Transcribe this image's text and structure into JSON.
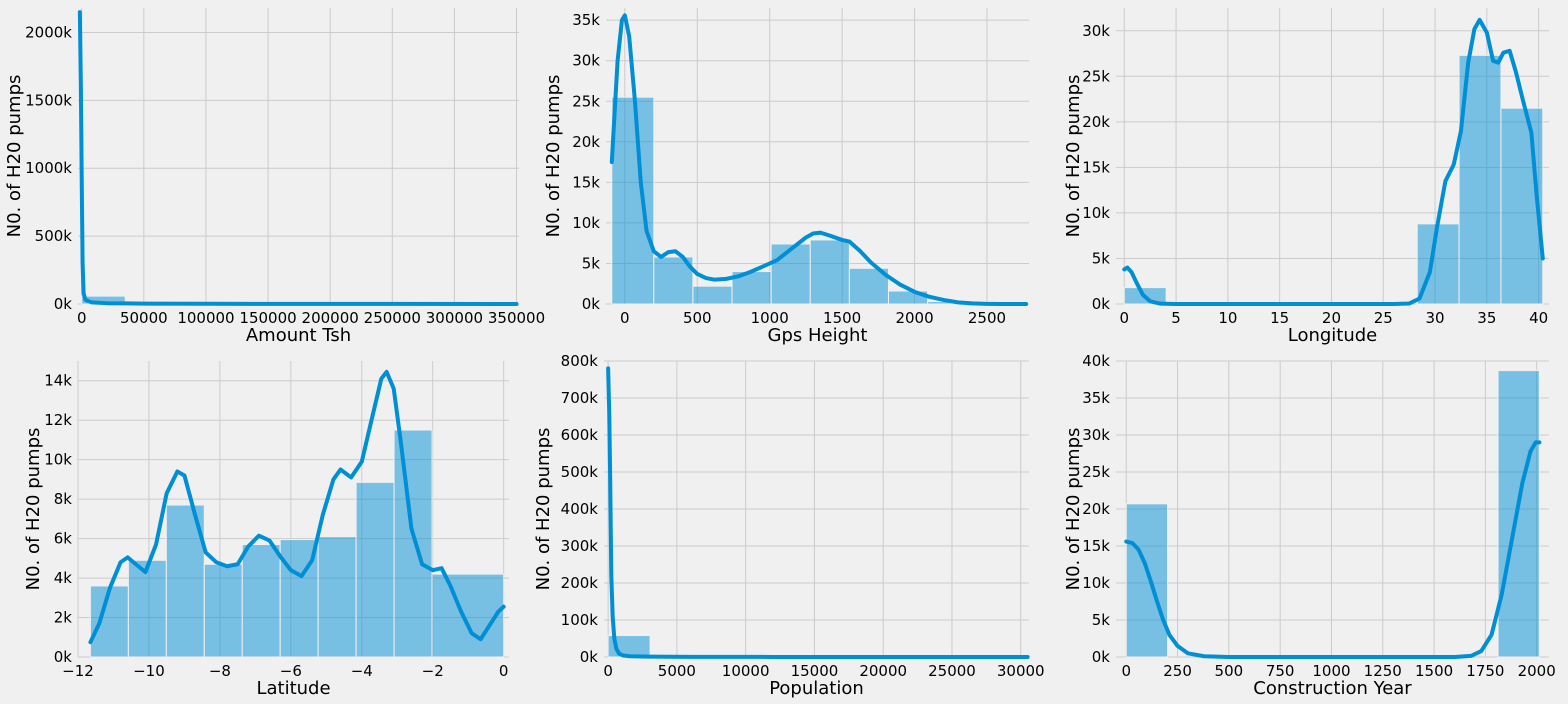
{
  "style": {
    "background": "#f0f0f0",
    "grid_color": "#cbcbcb",
    "bar_color": "#008fd5",
    "bar_opacity": 0.5,
    "kde_color": "#008fd5"
  },
  "chart_data": [
    {
      "type": "bar",
      "subtype": "histogram-with-kde",
      "xlabel": "Amount Tsh",
      "ylabel": "N0. of H20 pumps",
      "xlim": [
        -3000,
        352000
      ],
      "ylim": [
        0,
        2180000
      ],
      "x_ticks": [
        0,
        50000,
        100000,
        150000,
        200000,
        250000,
        300000,
        350000
      ],
      "x_tick_labels": [
        "0",
        "50000",
        "100000",
        "150000",
        "200000",
        "250000",
        "300000",
        "350000"
      ],
      "y_ticks": [
        0,
        500000,
        1000000,
        1500000,
        2000000
      ],
      "y_tick_labels": [
        "0k",
        "500k",
        "1000k",
        "1500k",
        "2000k"
      ],
      "grid": true,
      "bins": [
        {
          "x0": 0,
          "x1": 35000,
          "value": 58000
        },
        {
          "x0": 35000,
          "x1": 70000,
          "value": 40
        },
        {
          "x0": 70000,
          "x1": 105000,
          "value": 15
        },
        {
          "x0": 105000,
          "x1": 140000,
          "value": 8
        },
        {
          "x0": 140000,
          "x1": 175000,
          "value": 5
        },
        {
          "x0": 175000,
          "x1": 210000,
          "value": 4
        },
        {
          "x0": 210000,
          "x1": 245000,
          "value": 2
        },
        {
          "x0": 245000,
          "x1": 280000,
          "value": 2
        },
        {
          "x0": 280000,
          "x1": 315000,
          "value": 1
        },
        {
          "x0": 315000,
          "x1": 350000,
          "value": 1
        }
      ],
      "kde": [
        [
          -1500,
          2150000
        ],
        [
          -700,
          1600000
        ],
        [
          0,
          900000
        ],
        [
          700,
          300000
        ],
        [
          1500,
          80000
        ],
        [
          3000,
          30000
        ],
        [
          8000,
          12000
        ],
        [
          20000,
          6000
        ],
        [
          50000,
          3000
        ],
        [
          100000,
          1500
        ],
        [
          200000,
          800
        ],
        [
          350000,
          300
        ]
      ]
    },
    {
      "type": "bar",
      "subtype": "histogram-with-kde",
      "xlabel": "Gps Height",
      "ylabel": "N0. of H20 pumps",
      "xlim": [
        -130,
        2790
      ],
      "ylim": [
        0,
        36500
      ],
      "x_ticks": [
        0,
        500,
        1000,
        1500,
        2000,
        2500
      ],
      "x_tick_labels": [
        "0",
        "500",
        "1000",
        "1500",
        "2000",
        "2500"
      ],
      "y_ticks": [
        0,
        5000,
        10000,
        15000,
        20000,
        25000,
        30000,
        35000
      ],
      "y_tick_labels": [
        "0k",
        "5k",
        "10k",
        "15k",
        "20k",
        "25k",
        "30k",
        "35k"
      ],
      "grid": true,
      "bins": [
        {
          "x0": -90,
          "x1": 200,
          "value": 25500
        },
        {
          "x0": 200,
          "x1": 470,
          "value": 5800
        },
        {
          "x0": 470,
          "x1": 740,
          "value": 2200
        },
        {
          "x0": 740,
          "x1": 1010,
          "value": 4000
        },
        {
          "x0": 1010,
          "x1": 1280,
          "value": 7400
        },
        {
          "x0": 1280,
          "x1": 1550,
          "value": 7900
        },
        {
          "x0": 1550,
          "x1": 1820,
          "value": 4400
        },
        {
          "x0": 1820,
          "x1": 2090,
          "value": 1600
        },
        {
          "x0": 2090,
          "x1": 2360,
          "value": 300
        },
        {
          "x0": 2360,
          "x1": 2630,
          "value": 20
        }
      ],
      "kde": [
        [
          -90,
          17500
        ],
        [
          -50,
          30000
        ],
        [
          -20,
          35000
        ],
        [
          0,
          35600
        ],
        [
          30,
          33000
        ],
        [
          70,
          25000
        ],
        [
          110,
          15000
        ],
        [
          150,
          9000
        ],
        [
          200,
          6500
        ],
        [
          250,
          5800
        ],
        [
          300,
          6400
        ],
        [
          350,
          6500
        ],
        [
          400,
          5800
        ],
        [
          450,
          4600
        ],
        [
          500,
          3700
        ],
        [
          560,
          3200
        ],
        [
          620,
          3000
        ],
        [
          700,
          3100
        ],
        [
          780,
          3400
        ],
        [
          860,
          3900
        ],
        [
          950,
          4600
        ],
        [
          1050,
          5400
        ],
        [
          1150,
          6800
        ],
        [
          1250,
          8200
        ],
        [
          1300,
          8700
        ],
        [
          1350,
          8800
        ],
        [
          1420,
          8400
        ],
        [
          1500,
          7900
        ],
        [
          1550,
          7700
        ],
        [
          1620,
          6600
        ],
        [
          1700,
          5100
        ],
        [
          1800,
          3600
        ],
        [
          1900,
          2400
        ],
        [
          2000,
          1500
        ],
        [
          2100,
          900
        ],
        [
          2200,
          500
        ],
        [
          2300,
          200
        ],
        [
          2400,
          70
        ],
        [
          2500,
          20
        ],
        [
          2600,
          5
        ],
        [
          2770,
          0
        ]
      ]
    },
    {
      "type": "bar",
      "subtype": "histogram-with-kde",
      "xlabel": "Longitude",
      "ylabel": "N0. of H20 pumps",
      "xlim": [
        -0.8,
        41.0
      ],
      "ylim": [
        0,
        32500
      ],
      "x_ticks": [
        0,
        5,
        10,
        15,
        20,
        25,
        30,
        35,
        40
      ],
      "x_tick_labels": [
        "0",
        "5",
        "10",
        "15",
        "20",
        "25",
        "30",
        "35",
        "40"
      ],
      "y_ticks": [
        0,
        5000,
        10000,
        15000,
        20000,
        25000,
        30000
      ],
      "y_tick_labels": [
        "0k",
        "5k",
        "10k",
        "15k",
        "20k",
        "25k",
        "30k"
      ],
      "grid": true,
      "bins": [
        {
          "x0": 0,
          "x1": 4.04,
          "value": 1800
        },
        {
          "x0": 4.04,
          "x1": 8.08,
          "value": 0
        },
        {
          "x0": 8.08,
          "x1": 12.12,
          "value": 0
        },
        {
          "x0": 12.12,
          "x1": 16.16,
          "value": 0
        },
        {
          "x0": 16.16,
          "x1": 20.2,
          "value": 0
        },
        {
          "x0": 20.2,
          "x1": 24.24,
          "value": 0
        },
        {
          "x0": 24.24,
          "x1": 28.28,
          "value": 0
        },
        {
          "x0": 28.28,
          "x1": 32.32,
          "value": 8800
        },
        {
          "x0": 32.32,
          "x1": 36.36,
          "value": 27300
        },
        {
          "x0": 36.36,
          "x1": 40.4,
          "value": 21500
        }
      ],
      "kde": [
        [
          0,
          3800
        ],
        [
          0.3,
          4000
        ],
        [
          0.7,
          3500
        ],
        [
          1.2,
          2300
        ],
        [
          1.8,
          1000
        ],
        [
          2.5,
          300
        ],
        [
          3.5,
          40
        ],
        [
          5,
          0
        ],
        [
          20,
          0
        ],
        [
          26,
          0
        ],
        [
          27.5,
          50
        ],
        [
          28.5,
          600
        ],
        [
          29.5,
          3500
        ],
        [
          30.2,
          8500
        ],
        [
          31,
          13500
        ],
        [
          31.8,
          15300
        ],
        [
          32.5,
          19000
        ],
        [
          33.2,
          26500
        ],
        [
          33.8,
          30200
        ],
        [
          34.3,
          31200
        ],
        [
          35,
          29800
        ],
        [
          35.6,
          26700
        ],
        [
          36.1,
          26500
        ],
        [
          36.6,
          27600
        ],
        [
          37.2,
          27800
        ],
        [
          37.8,
          25500
        ],
        [
          38.5,
          22300
        ],
        [
          39.3,
          18800
        ],
        [
          39.8,
          12000
        ],
        [
          40.4,
          5000
        ]
      ]
    },
    {
      "type": "bar",
      "subtype": "histogram-with-kde",
      "xlabel": "Latitude",
      "ylabel": "N0. of H20 pumps",
      "xlim": [
        -12.0,
        0.15
      ],
      "ylim": [
        0,
        15000
      ],
      "x_ticks": [
        -12,
        -10,
        -8,
        -6,
        -4,
        -2,
        0
      ],
      "x_tick_labels": [
        "−12",
        "−10",
        "−8",
        "−6",
        "−4",
        "−2",
        "0"
      ],
      "y_ticks": [
        0,
        2000,
        4000,
        6000,
        8000,
        10000,
        12000,
        14000
      ],
      "y_tick_labels": [
        "0k",
        "2k",
        "4k",
        "6k",
        "8k",
        "10k",
        "12k",
        "14k"
      ],
      "grid": true,
      "bins": [
        {
          "x0": -11.65,
          "x1": -10.58,
          "value": 3600
        },
        {
          "x0": -10.58,
          "x1": -9.51,
          "value": 4900
        },
        {
          "x0": -9.51,
          "x1": -8.44,
          "value": 7700
        },
        {
          "x0": -8.44,
          "x1": -7.37,
          "value": 4700
        },
        {
          "x0": -7.37,
          "x1": -6.3,
          "value": 5700
        },
        {
          "x0": -6.3,
          "x1": -5.23,
          "value": 5950
        },
        {
          "x0": -5.23,
          "x1": -4.16,
          "value": 6100
        },
        {
          "x0": -4.16,
          "x1": -3.09,
          "value": 8850
        },
        {
          "x0": -3.09,
          "x1": -2.02,
          "value": 11500
        },
        {
          "x0": -2.02,
          "x1": 0,
          "value": 4200
        }
      ],
      "kde": [
        [
          -11.65,
          750
        ],
        [
          -11.4,
          1700
        ],
        [
          -11.1,
          3500
        ],
        [
          -10.8,
          4800
        ],
        [
          -10.6,
          5050
        ],
        [
          -10.3,
          4600
        ],
        [
          -10.1,
          4300
        ],
        [
          -9.8,
          5700
        ],
        [
          -9.5,
          8300
        ],
        [
          -9.2,
          9400
        ],
        [
          -9.0,
          9200
        ],
        [
          -8.7,
          7200
        ],
        [
          -8.4,
          5300
        ],
        [
          -8.1,
          4800
        ],
        [
          -7.8,
          4600
        ],
        [
          -7.5,
          4700
        ],
        [
          -7.2,
          5600
        ],
        [
          -6.9,
          6150
        ],
        [
          -6.6,
          5900
        ],
        [
          -6.3,
          5100
        ],
        [
          -6.0,
          4400
        ],
        [
          -5.7,
          4100
        ],
        [
          -5.4,
          4900
        ],
        [
          -5.1,
          7200
        ],
        [
          -4.8,
          9000
        ],
        [
          -4.6,
          9500
        ],
        [
          -4.3,
          9100
        ],
        [
          -4.0,
          9900
        ],
        [
          -3.7,
          12200
        ],
        [
          -3.45,
          14100
        ],
        [
          -3.3,
          14450
        ],
        [
          -3.1,
          13600
        ],
        [
          -2.9,
          10900
        ],
        [
          -2.6,
          6500
        ],
        [
          -2.3,
          4700
        ],
        [
          -2.0,
          4400
        ],
        [
          -1.75,
          4500
        ],
        [
          -1.5,
          3600
        ],
        [
          -1.2,
          2300
        ],
        [
          -0.9,
          1200
        ],
        [
          -0.65,
          900
        ],
        [
          -0.4,
          1600
        ],
        [
          -0.15,
          2300
        ],
        [
          0,
          2550
        ]
      ]
    },
    {
      "type": "bar",
      "subtype": "histogram-with-kde",
      "xlabel": "Population",
      "ylabel": "N0. of H20 pumps",
      "xlim": [
        -300,
        30600
      ],
      "ylim": [
        0,
        800000
      ],
      "x_ticks": [
        0,
        5000,
        10000,
        15000,
        20000,
        25000,
        30000
      ],
      "x_tick_labels": [
        "0",
        "5000",
        "10000",
        "15000",
        "20000",
        "25000",
        "30000"
      ],
      "y_ticks": [
        0,
        100000,
        200000,
        300000,
        400000,
        500000,
        600000,
        700000,
        800000
      ],
      "y_tick_labels": [
        "0k",
        "100k",
        "200k",
        "300k",
        "400k",
        "500k",
        "600k",
        "700k",
        "800k"
      ],
      "grid": true,
      "bins": [
        {
          "x0": 0,
          "x1": 3050,
          "value": 58000
        },
        {
          "x0": 3050,
          "x1": 6100,
          "value": 500
        },
        {
          "x0": 6100,
          "x1": 9150,
          "value": 150
        },
        {
          "x0": 9150,
          "x1": 12200,
          "value": 60
        },
        {
          "x0": 12200,
          "x1": 15250,
          "value": 30
        },
        {
          "x0": 15250,
          "x1": 18300,
          "value": 15
        },
        {
          "x0": 18300,
          "x1": 21350,
          "value": 8
        },
        {
          "x0": 21350,
          "x1": 24400,
          "value": 5
        },
        {
          "x0": 24400,
          "x1": 27450,
          "value": 3
        },
        {
          "x0": 27450,
          "x1": 30500,
          "value": 2
        }
      ],
      "kde": [
        [
          0,
          780000
        ],
        [
          80,
          660000
        ],
        [
          150,
          480000
        ],
        [
          230,
          220000
        ],
        [
          330,
          110000
        ],
        [
          450,
          50000
        ],
        [
          600,
          22000
        ],
        [
          800,
          9000
        ],
        [
          1100,
          4000
        ],
        [
          1600,
          2000
        ],
        [
          3000,
          900
        ],
        [
          6000,
          400
        ],
        [
          12000,
          150
        ],
        [
          20000,
          60
        ],
        [
          30500,
          20
        ]
      ]
    },
    {
      "type": "bar",
      "subtype": "histogram-with-kde",
      "xlabel": "Construction Year",
      "ylabel": "N0. of H20 pumps",
      "xlim": [
        -50,
        2060
      ],
      "ylim": [
        0,
        40000
      ],
      "x_ticks": [
        0,
        250,
        500,
        750,
        1000,
        1250,
        1500,
        1750,
        2000
      ],
      "x_tick_labels": [
        "0",
        "250",
        "500",
        "750",
        "1000",
        "1250",
        "1500",
        "1750",
        "2000"
      ],
      "y_ticks": [
        0,
        5000,
        10000,
        15000,
        20000,
        25000,
        30000,
        35000,
        40000
      ],
      "y_tick_labels": [
        "0k",
        "5k",
        "10k",
        "15k",
        "20k",
        "25k",
        "30k",
        "35k",
        "40k"
      ],
      "grid": true,
      "bins": [
        {
          "x0": 0,
          "x1": 201.3,
          "value": 20700
        },
        {
          "x0": 201.3,
          "x1": 402.6,
          "value": 0
        },
        {
          "x0": 402.6,
          "x1": 603.9,
          "value": 0
        },
        {
          "x0": 603.9,
          "x1": 805.2,
          "value": 0
        },
        {
          "x0": 805.2,
          "x1": 1006.5,
          "value": 0
        },
        {
          "x0": 1006.5,
          "x1": 1207.8,
          "value": 0
        },
        {
          "x0": 1207.8,
          "x1": 1409.1,
          "value": 0
        },
        {
          "x0": 1409.1,
          "x1": 1610.4,
          "value": 0
        },
        {
          "x0": 1610.4,
          "x1": 1811.7,
          "value": 0
        },
        {
          "x0": 1811.7,
          "x1": 2013,
          "value": 38700
        }
      ],
      "kde": [
        [
          0,
          15600
        ],
        [
          30,
          15400
        ],
        [
          60,
          14500
        ],
        [
          90,
          12700
        ],
        [
          120,
          10200
        ],
        [
          150,
          7500
        ],
        [
          180,
          5000
        ],
        [
          210,
          3000
        ],
        [
          250,
          1500
        ],
        [
          300,
          500
        ],
        [
          380,
          100
        ],
        [
          500,
          0
        ],
        [
          1600,
          0
        ],
        [
          1680,
          150
        ],
        [
          1730,
          800
        ],
        [
          1780,
          3000
        ],
        [
          1830,
          8500
        ],
        [
          1880,
          16000
        ],
        [
          1930,
          23500
        ],
        [
          1970,
          27800
        ],
        [
          1995,
          29000
        ],
        [
          2013,
          29000
        ]
      ]
    }
  ]
}
